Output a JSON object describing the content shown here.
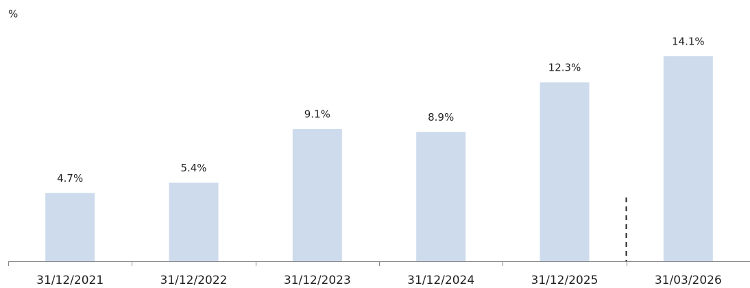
{
  "chart_data": {
    "type": "bar",
    "y_axis_label": "%",
    "categories": [
      "31/12/2021",
      "31/12/2022",
      "31/12/2023",
      "31/12/2024",
      "31/12/2025",
      "31/03/2026"
    ],
    "values": [
      4.7,
      5.4,
      9.1,
      8.9,
      12.3,
      14.1
    ],
    "value_labels": [
      "4.7%",
      "5.4%",
      "9.1%",
      "8.9%",
      "12.3%",
      "14.1%"
    ],
    "color": "#cddbec",
    "ylim": [
      0,
      15
    ]
  }
}
